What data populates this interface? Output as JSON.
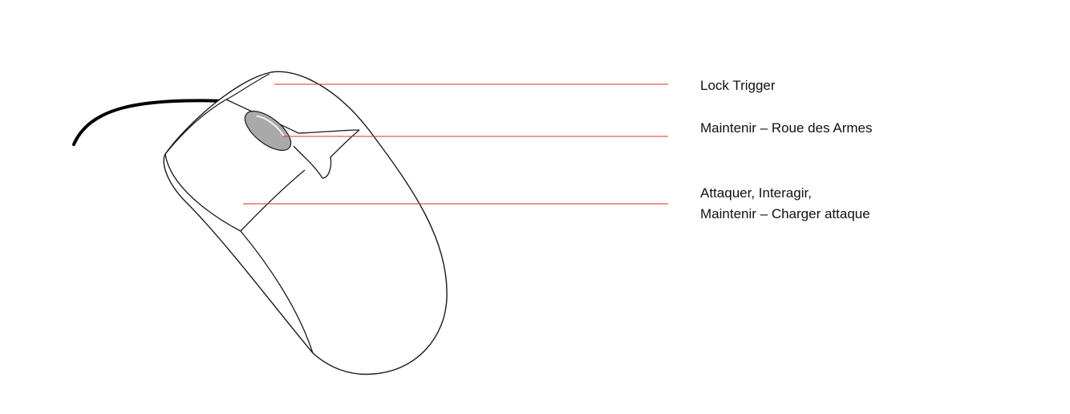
{
  "colors": {
    "background": "#ffffff",
    "outline": "#1a1a1a",
    "cable": "#000000",
    "wheel": "#a9a9a9",
    "leader_line": "#d9302c",
    "text": "#111111"
  },
  "labels": {
    "lock_trigger": "Lock Trigger",
    "weapon_wheel": "Maintenir – Roue des Armes",
    "attack_line1": "Attaquer, Interagir,",
    "attack_line2": "Maintenir – Charger attaque"
  }
}
